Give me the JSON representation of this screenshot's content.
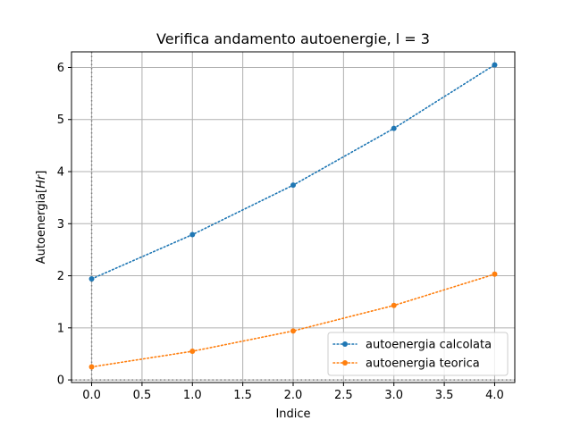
{
  "chart_data": {
    "type": "line",
    "title": "Verifica andamento autoenergie, l = 3",
    "xlabel": "Indice",
    "ylabel": "Autoenergia[Hr]",
    "xlim": [
      -0.2,
      4.2
    ],
    "ylim": [
      -0.05,
      6.3
    ],
    "xticks": [
      0.0,
      0.5,
      1.0,
      1.5,
      2.0,
      2.5,
      3.0,
      3.5,
      4.0
    ],
    "xtick_labels": [
      "0.0",
      "0.5",
      "1.0",
      "1.5",
      "2.0",
      "2.5",
      "3.0",
      "3.5",
      "4.0"
    ],
    "yticks": [
      0,
      1,
      2,
      3,
      4,
      5,
      6
    ],
    "ytick_labels": [
      "0",
      "1",
      "2",
      "3",
      "4",
      "5",
      "6"
    ],
    "grid": true,
    "legend_position": "lower-right",
    "reference_lines": {
      "x": 0,
      "y": 0
    },
    "x": [
      0,
      1,
      2,
      3,
      4
    ],
    "series": [
      {
        "name": "autoenergia calcolata",
        "color": "#1f77b4",
        "values": [
          1.94,
          2.79,
          3.74,
          4.83,
          6.05
        ]
      },
      {
        "name": "autoenergia teorica",
        "color": "#ff7f0e",
        "values": [
          0.25,
          0.55,
          0.94,
          1.43,
          2.03
        ]
      }
    ]
  }
}
